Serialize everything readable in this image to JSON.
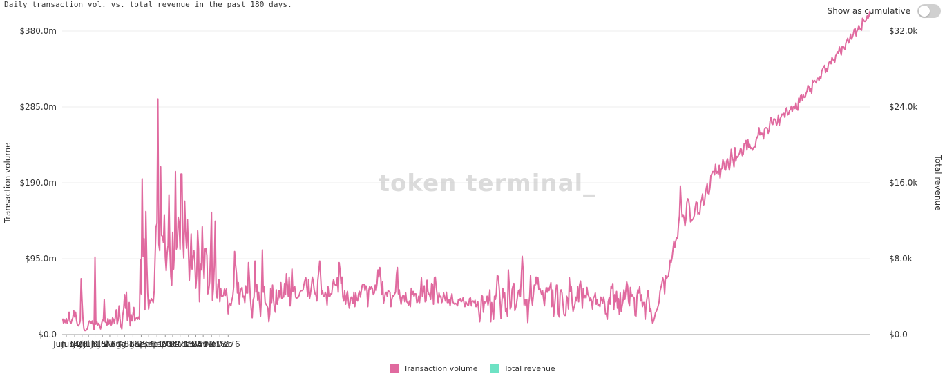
{
  "header": {
    "subtitle": "Daily transaction vol. vs. total revenue in the past 180 days.",
    "toggle_label": "Show as cumulative",
    "toggle_on": false
  },
  "watermark": "token terminal_",
  "colors": {
    "transaction_volume": "#e06a9f",
    "total_revenue": "#6ee2c4",
    "grid": "#eeeeee",
    "axis": "#999999"
  },
  "chart_data": {
    "type": "bar+line",
    "title": "Daily transaction vol. vs. total revenue in the past 180 days.",
    "ylabel_left": "Transaction volume",
    "ylabel_right": "Total revenue",
    "y_left": {
      "range": [
        0,
        380
      ],
      "unit": "m",
      "ticks": [
        "$0.0",
        "$95.0m",
        "$190.0m",
        "$285.0m",
        "$380.0m"
      ]
    },
    "y_right": {
      "range": [
        0,
        32000
      ],
      "ticks": [
        "$0.0",
        "$8.0k",
        "$16.0k",
        "$24.0k",
        "$32.0k"
      ]
    },
    "x_ticks": [
      "Jun 14",
      "Jun 23",
      "Jul 1",
      "Jul 8",
      "Jul 15",
      "Jul 23",
      "Jul 31",
      "Aug 8",
      "Aug 16",
      "Aug 25",
      "Sep 3",
      "Sep 11",
      "Sep 20",
      "Sep 29",
      "Oct 7",
      "Oct 15",
      "Oct 24",
      "Nov 1",
      "Nov 9",
      "Nov 18",
      "Nov 27",
      "Dec 6"
    ],
    "start_date": "2024-06-10",
    "legend": [
      "Transaction volume",
      "Total revenue"
    ],
    "legend_position": "bottom",
    "grid": true,
    "series": [
      {
        "name": "Transaction volume",
        "type": "line",
        "values": [
          20,
          14,
          18,
          15,
          20,
          14,
          18,
          28,
          16,
          14,
          18,
          21,
          30,
          22,
          28,
          18,
          12,
          11,
          13,
          17,
          70,
          42,
          19,
          7,
          5,
          5,
          6,
          8,
          14,
          17,
          16,
          14,
          17,
          12,
          6,
          97,
          13,
          16,
          12,
          14,
          11,
          7,
          13,
          18,
          17,
          44,
          16,
          15,
          12,
          20,
          13,
          18,
          11,
          13,
          21,
          19,
          14,
          22,
          31,
          13,
          18,
          36,
          20,
          10,
          7,
          24,
          32,
          50,
          33,
          53,
          18,
          23,
          40,
          11,
          25,
          17,
          25,
          34,
          17,
          20,
          21,
          19,
          22,
          19,
          94,
          51,
          195,
          98,
          120,
          31,
          154,
          90,
          52,
          32,
          43,
          40,
          45,
          43,
          40,
          55,
          97,
          135,
          139,
          295,
          113,
          105,
          210,
          124,
          123,
          115,
          150,
          97,
          80,
          102,
          112,
          175,
          106,
          73,
          62,
          128,
          82,
          105,
          204,
          107,
          113,
          147,
          139,
          107,
          201,
          201,
          121,
          96,
          167,
          128,
          108,
          144,
          107,
          68,
          95,
          126,
          82,
          97,
          105,
          90,
          58,
          74,
          130,
          107,
          41,
          88,
          81,
          135,
          91,
          70,
          107,
          108,
          99,
          51,
          56,
          66,
          106,
          153,
          43,
          57,
          86,
          142,
          51,
          46,
          63,
          69,
          41,
          58,
          48,
          48,
          49,
          57,
          49,
          57,
          45,
          26,
          37,
          39,
          36,
          43,
          48,
          60,
          104,
          88,
          76,
          52,
          65,
          38,
          52,
          57,
          59,
          47,
          48,
          40,
          61,
          52,
          52,
          90,
          70,
          46,
          31,
          21,
          43,
          47,
          92,
          53,
          63,
          43,
          53,
          38,
          23,
          46,
          106,
          53,
          60,
          40,
          38,
          36,
          33,
          16,
          26,
          58,
          40,
          62,
          44,
          33,
          28,
          56,
          38,
          44,
          55,
          46,
          65,
          45,
          47,
          47,
          64,
          50,
          76,
          62,
          48,
          72,
          36,
          57,
          82,
          54,
          59,
          60,
          47,
          45,
          47,
          47,
          50,
          54,
          55,
          55,
          56,
          63,
          68,
          71,
          60,
          48,
          69,
          45,
          51,
          60,
          72,
          67,
          56,
          51,
          49,
          42,
          68,
          80,
          92,
          73,
          51,
          55,
          48,
          48,
          53,
          50,
          37,
          60,
          48,
          48,
          51,
          51,
          62,
          69,
          63,
          62,
          61,
          71,
          53,
          90,
          81,
          64,
          72,
          47,
          42,
          55,
          38,
          49,
          54,
          42,
          33,
          41,
          47,
          46,
          39,
          53,
          35,
          52,
          44,
          42,
          51,
          54,
          47,
          55,
          62,
          63,
          63,
          55,
          61,
          58,
          35,
          55,
          60,
          57,
          60,
          57,
          50,
          52,
          62,
          55,
          64,
          81,
          72,
          84,
          71,
          50,
          66,
          39,
          45,
          52,
          53,
          48,
          55,
          54,
          53,
          35,
          44,
          49,
          48,
          51,
          53,
          75,
          84,
          51,
          56,
          45,
          38,
          46,
          49,
          49,
          41,
          52,
          41,
          40,
          37,
          42,
          35,
          58,
          50,
          54,
          48,
          51,
          51,
          40,
          41,
          48,
          40,
          54,
          71,
          48,
          54,
          61,
          41,
          42,
          68,
          54,
          51,
          49,
          44,
          64,
          63,
          38,
          71,
          72,
          59,
          50,
          40,
          52,
          47,
          48,
          40,
          43,
          52,
          47,
          42,
          53,
          40,
          40,
          44,
          36,
          45,
          51,
          41,
          39,
          38,
          39,
          38,
          36,
          44,
          43,
          45,
          41,
          42,
          46,
          40,
          35,
          41,
          39,
          37,
          37,
          45,
          46,
          36,
          42,
          42,
          40,
          43,
          35,
          37,
          41,
          30,
          16,
          26,
          49,
          48,
          28,
          41,
          40,
          41,
          48,
          37,
          44,
          56,
          16,
          40,
          29,
          19,
          48,
          44,
          52,
          74,
          73,
          60,
          42,
          20,
          41,
          58,
          46,
          52,
          29,
          33,
          23,
          81,
          61,
          32,
          35,
          56,
          61,
          64,
          30,
          34,
          40,
          49,
          55,
          56,
          48,
          73,
          98,
          80,
          37,
          44,
          36,
          44,
          15,
          38,
          47,
          74,
          48,
          37,
          49,
          62,
          62,
          72,
          63,
          71,
          56,
          58,
          54,
          50,
          55,
          45,
          36,
          51,
          59,
          53,
          59,
          55,
          60,
          65,
          35,
          56,
          23,
          35,
          50,
          62,
          62,
          26,
          22,
          53,
          56,
          52,
          39,
          26,
          24,
          24,
          48,
          45,
          32,
          71,
          54,
          60,
          40,
          29,
          34,
          38,
          47,
          42,
          60,
          41,
          62,
          67,
          55,
          33,
          58,
          46,
          49,
          46,
          59,
          50,
          48,
          42,
          46,
          42,
          32,
          47,
          47,
          52,
          38,
          44,
          36,
          38,
          35,
          47,
          44,
          39,
          47,
          40,
          26,
          26,
          19,
          41,
          46,
          38,
          60,
          58,
          64,
          31,
          50,
          41,
          54,
          33,
          45,
          25,
          52,
          29,
          36,
          42,
          56,
          44,
          54,
          66,
          61,
          41,
          36,
          59,
          48,
          50,
          47,
          46,
          24,
          23,
          47,
          56,
          52,
          60,
          42,
          50,
          35,
          40,
          40,
          19,
          38,
          46,
          55,
          45,
          29,
          32,
          21,
          14,
          17,
          21,
          27,
          29,
          32,
          36,
          41,
          54,
          59,
          64,
          71,
          67,
          51,
          74,
          70,
          72,
          73,
          81,
          93,
          90,
          96,
          106,
          117,
          109,
          117,
          121,
          120,
          138,
          149,
          186,
          163,
          147,
          150,
          146,
          136,
          144,
          165,
          170,
          168,
          159,
          141,
          142,
          144,
          145,
          149,
          159,
          166,
          165,
          151,
          152,
          151,
          165,
          169,
          176,
          162,
          164,
          176,
          183,
          189,
          177,
          176,
          184,
          199,
          201,
          204,
          204,
          200,
          213,
          202,
          204,
          201,
          212,
          196,
          207,
          208,
          219,
          215,
          207,
          206,
          217,
          220,
          212,
          206,
          215,
          232,
          223,
          218,
          210,
          234,
          217,
          223,
          222,
          225,
          227,
          233,
          232,
          224,
          226,
          239,
          239,
          243,
          231,
          244,
          234,
          238,
          233,
          234,
          231,
          234,
          235,
          235,
          244,
          247,
          249,
          259,
          250,
          253,
          251,
          252,
          245,
          257,
          259,
          259,
          258,
          252,
          256,
          267,
          272,
          264,
          263,
          270,
          270,
          268,
          262,
          265,
          275,
          262,
          270,
          273,
          276,
          275,
          277,
          272,
          282,
          284,
          275,
          276,
          280,
          282,
          286,
          279,
          285,
          286,
          283,
          290,
          283,
          281,
          296,
          291,
          299,
          300,
          293,
          300,
          297,
          297,
          302,
          305,
          312,
          310,
          304,
          308,
          302,
          318,
          316,
          318,
          317,
          315,
          321,
          321,
          318,
          323,
          321,
          330,
          333,
          335,
          337,
          328,
          333,
          329,
          338,
          341,
          342,
          339,
          347,
          344,
          343,
          341,
          349,
          351,
          354,
          352,
          360,
          355,
          350,
          361,
          361,
          359,
          357,
          365,
          368,
          371,
          365,
          368,
          376,
          370,
          372,
          376,
          382,
          383,
          374,
          380,
          382,
          387,
          383,
          382,
          381,
          396,
          394,
          392,
          392,
          394,
          399,
          396,
          399,
          405
        ]
      }
    ]
  }
}
